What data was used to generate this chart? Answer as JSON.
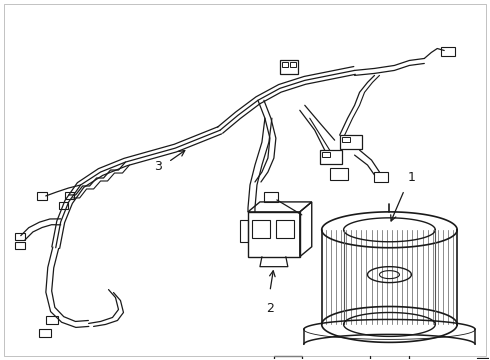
{
  "background_color": "#ffffff",
  "line_color": "#1a1a1a",
  "lw": 1.0
}
